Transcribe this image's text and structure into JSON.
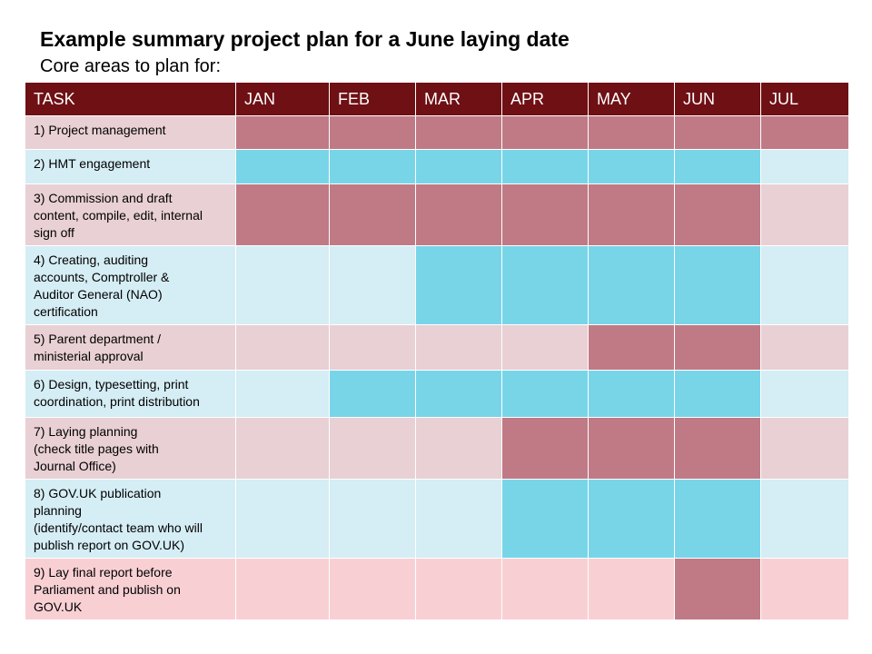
{
  "title": "Example summary project plan for a June laying date",
  "subtitle": "Core areas to plan for:",
  "colors": {
    "header_bg": "#6f1015",
    "pink_active": "#bf7a86",
    "pink_inactive": "#e8d0d4",
    "blue_active": "#78d5e8",
    "blue_inactive": "#d5edf4",
    "last_inactive": "#f8d0d4"
  },
  "table": {
    "headers": [
      "TASK",
      "JAN",
      "FEB",
      "MAR",
      "APR",
      "MAY",
      "JUN",
      "JUL"
    ],
    "rows": [
      {
        "task": "1)  Project management",
        "theme": "pink",
        "active": [
          1,
          1,
          1,
          1,
          1,
          1,
          1
        ]
      },
      {
        "task": "2)  HMT engagement",
        "theme": "blue",
        "active": [
          1,
          1,
          1,
          1,
          1,
          1,
          0
        ]
      },
      {
        "task": "3)  Commission and draft\ncontent,  compile, edit, internal\nsign off",
        "theme": "pink",
        "active": [
          1,
          1,
          1,
          1,
          1,
          1,
          0
        ]
      },
      {
        "task": "4)  Creating, auditing\naccounts,  Comptroller &\nAuditor General  (NAO)\ncertification",
        "theme": "blue",
        "active": [
          0,
          0,
          1,
          1,
          1,
          1,
          0
        ]
      },
      {
        "task": "5)  Parent department  /\nministerial approval",
        "theme": "pink",
        "active": [
          0,
          0,
          0,
          0,
          1,
          1,
          0
        ]
      },
      {
        "task": "6)  Design, typesetting, print\ncoordination, print distribution",
        "theme": "blue",
        "active": [
          0,
          1,
          1,
          1,
          1,
          1,
          0
        ]
      },
      {
        "task": "7)  Laying planning\n(check title pages with\nJournal Office)",
        "theme": "pink",
        "active": [
          0,
          0,
          0,
          1,
          1,
          1,
          0
        ]
      },
      {
        "task": "8)  GOV.UK publication\nplanning\n(identify/contact  team who will\npublish report on GOV.UK)",
        "theme": "blue",
        "active": [
          0,
          0,
          0,
          1,
          1,
          1,
          0
        ]
      },
      {
        "task": "9)  Lay final report before\nParliament and publish on\nGOV.UK",
        "theme": "last",
        "active": [
          0,
          0,
          0,
          0,
          0,
          1,
          0
        ]
      }
    ]
  }
}
